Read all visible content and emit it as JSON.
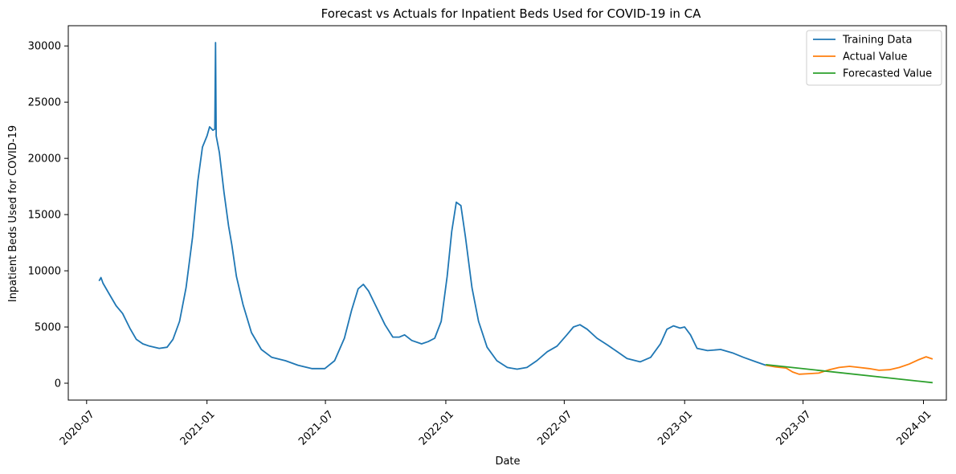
{
  "chart_data": {
    "type": "line",
    "title": "Forecast vs Actuals for Inpatient Beds Used for COVID-19 in CA",
    "xlabel": "Date",
    "ylabel": "Inpatient Beds Used for COVID-19",
    "x_ticks": [
      "2020-07",
      "2021-01",
      "2021-07",
      "2022-01",
      "2022-07",
      "2023-01",
      "2023-07",
      "2024-01"
    ],
    "y_ticks": [
      0,
      5000,
      10000,
      15000,
      20000,
      25000,
      30000
    ],
    "xlim": [
      "2020-06-03",
      "2024-02-05"
    ],
    "ylim": [
      -1500,
      31800
    ],
    "grid": false,
    "legend_position": "top-right",
    "series": [
      {
        "name": "Training Data",
        "color": "#1f77b4",
        "points": [
          [
            "2020-07-20",
            9100
          ],
          [
            "2020-07-23",
            9400
          ],
          [
            "2020-07-26",
            8900
          ],
          [
            "2020-08-05",
            7900
          ],
          [
            "2020-08-15",
            6900
          ],
          [
            "2020-08-25",
            6200
          ],
          [
            "2020-09-05",
            4900
          ],
          [
            "2020-09-15",
            3900
          ],
          [
            "2020-09-25",
            3500
          ],
          [
            "2020-10-05",
            3300
          ],
          [
            "2020-10-20",
            3100
          ],
          [
            "2020-11-01",
            3200
          ],
          [
            "2020-11-10",
            3900
          ],
          [
            "2020-11-20",
            5500
          ],
          [
            "2020-11-30",
            8500
          ],
          [
            "2020-12-10",
            13000
          ],
          [
            "2020-12-18",
            18000
          ],
          [
            "2020-12-25",
            21000
          ],
          [
            "2021-01-01",
            22000
          ],
          [
            "2021-01-05",
            22800
          ],
          [
            "2021-01-10",
            22500
          ],
          [
            "2021-01-13",
            22600
          ],
          [
            "2021-01-14",
            30300
          ],
          [
            "2021-01-15",
            22000
          ],
          [
            "2021-01-20",
            20500
          ],
          [
            "2021-01-27",
            17000
          ],
          [
            "2021-02-03",
            14000
          ],
          [
            "2021-02-08",
            12300
          ],
          [
            "2021-02-15",
            9500
          ],
          [
            "2021-02-25",
            7000
          ],
          [
            "2021-03-10",
            4500
          ],
          [
            "2021-03-25",
            3000
          ],
          [
            "2021-04-10",
            2300
          ],
          [
            "2021-05-01",
            2000
          ],
          [
            "2021-05-20",
            1600
          ],
          [
            "2021-06-10",
            1300
          ],
          [
            "2021-06-30",
            1300
          ],
          [
            "2021-07-15",
            2000
          ],
          [
            "2021-07-30",
            4000
          ],
          [
            "2021-08-10",
            6500
          ],
          [
            "2021-08-20",
            8400
          ],
          [
            "2021-08-28",
            8800
          ],
          [
            "2021-09-05",
            8200
          ],
          [
            "2021-09-15",
            7000
          ],
          [
            "2021-09-30",
            5200
          ],
          [
            "2021-10-12",
            4100
          ],
          [
            "2021-10-22",
            4100
          ],
          [
            "2021-10-30",
            4300
          ],
          [
            "2021-11-10",
            3800
          ],
          [
            "2021-11-25",
            3500
          ],
          [
            "2021-12-05",
            3700
          ],
          [
            "2021-12-15",
            4000
          ],
          [
            "2021-12-25",
            5500
          ],
          [
            "2022-01-03",
            9500
          ],
          [
            "2022-01-10",
            13500
          ],
          [
            "2022-01-17",
            16100
          ],
          [
            "2022-01-24",
            15800
          ],
          [
            "2022-01-31",
            13000
          ],
          [
            "2022-02-10",
            8500
          ],
          [
            "2022-02-20",
            5500
          ],
          [
            "2022-03-05",
            3200
          ],
          [
            "2022-03-20",
            2000
          ],
          [
            "2022-04-05",
            1400
          ],
          [
            "2022-04-20",
            1250
          ],
          [
            "2022-05-05",
            1400
          ],
          [
            "2022-05-20",
            2000
          ],
          [
            "2022-06-05",
            2800
          ],
          [
            "2022-06-20",
            3300
          ],
          [
            "2022-07-05",
            4300
          ],
          [
            "2022-07-15",
            5000
          ],
          [
            "2022-07-25",
            5200
          ],
          [
            "2022-08-05",
            4800
          ],
          [
            "2022-08-20",
            4000
          ],
          [
            "2022-09-05",
            3400
          ],
          [
            "2022-09-20",
            2800
          ],
          [
            "2022-10-05",
            2200
          ],
          [
            "2022-10-25",
            1900
          ],
          [
            "2022-11-10",
            2300
          ],
          [
            "2022-11-25",
            3500
          ],
          [
            "2022-12-05",
            4800
          ],
          [
            "2022-12-15",
            5100
          ],
          [
            "2022-12-25",
            4900
          ],
          [
            "2023-01-01",
            5000
          ],
          [
            "2023-01-10",
            4300
          ],
          [
            "2023-01-20",
            3100
          ],
          [
            "2023-02-05",
            2900
          ],
          [
            "2023-02-25",
            3000
          ],
          [
            "2023-03-15",
            2700
          ],
          [
            "2023-04-01",
            2300
          ],
          [
            "2023-04-20",
            1900
          ],
          [
            "2023-05-05",
            1600
          ]
        ]
      },
      {
        "name": "Actual Value",
        "color": "#ff7f0e",
        "points": [
          [
            "2023-05-05",
            1600
          ],
          [
            "2023-05-20",
            1450
          ],
          [
            "2023-06-05",
            1350
          ],
          [
            "2023-06-15",
            1000
          ],
          [
            "2023-06-25",
            800
          ],
          [
            "2023-07-10",
            850
          ],
          [
            "2023-07-25",
            900
          ],
          [
            "2023-08-10",
            1200
          ],
          [
            "2023-08-25",
            1400
          ],
          [
            "2023-09-10",
            1500
          ],
          [
            "2023-09-25",
            1400
          ],
          [
            "2023-10-10",
            1300
          ],
          [
            "2023-10-25",
            1150
          ],
          [
            "2023-11-10",
            1200
          ],
          [
            "2023-11-25",
            1400
          ],
          [
            "2023-12-10",
            1700
          ],
          [
            "2023-12-25",
            2100
          ],
          [
            "2024-01-05",
            2350
          ],
          [
            "2024-01-15",
            2150
          ]
        ]
      },
      {
        "name": "Forecasted Value",
        "color": "#2ca02c",
        "points": [
          [
            "2023-05-05",
            1650
          ],
          [
            "2024-01-15",
            50
          ]
        ]
      }
    ]
  }
}
